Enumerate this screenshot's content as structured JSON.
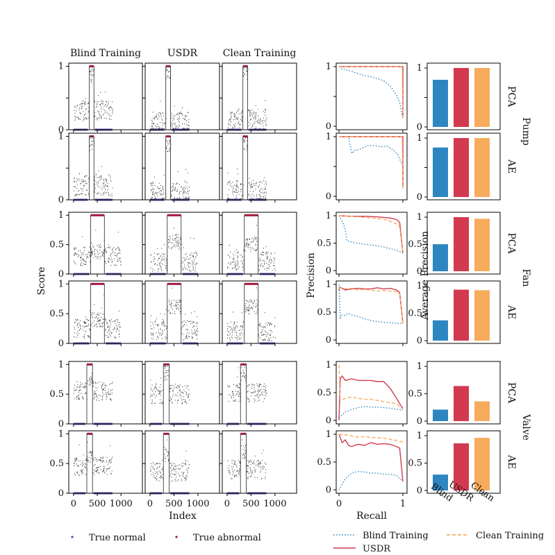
{
  "chart_data": {
    "type": "composite",
    "column_titles": [
      "Blind Training",
      "USDR",
      "Clean Training"
    ],
    "method_titles": [
      "Blind Training",
      "USDR",
      "Clean Training"
    ],
    "machines": [
      "Pump",
      "Fan",
      "Valve"
    ],
    "models": [
      "PCA",
      "AE"
    ],
    "score_panels": {
      "ylabel": "Score",
      "xlabel": "Index",
      "xlim": [
        -100,
        1450
      ],
      "ylim": [
        0,
        1.05
      ],
      "xticks": [
        "0",
        "500",
        "1000"
      ],
      "yticks_full": [
        "0",
        "0.5",
        "1"
      ],
      "yticks_pump": [
        "0",
        "1"
      ],
      "abnormal_intervals": {
        "Pump": [
          330,
          430
        ],
        "Fan": [
          360,
          650
        ],
        "Valve": [
          280,
          400
        ]
      },
      "normal_intervals": {
        "Pump": [
          [
            0,
            300
          ],
          [
            450,
            820
          ]
        ],
        "Fan": [
          [
            0,
            330
          ],
          [
            680,
            1000
          ]
        ],
        "Valve": [
          [
            0,
            250
          ],
          [
            420,
            820
          ]
        ]
      }
    },
    "pr_curves": {
      "xlabel": "Recall",
      "ylabel": "Precision",
      "xticks": [
        "0",
        "1"
      ],
      "yticks_full": [
        "0",
        "0.5",
        "1"
      ],
      "yticks_pump": [
        "0",
        "1"
      ],
      "panels": [
        {
          "machine": "Pump",
          "model": "PCA",
          "series": [
            {
              "name": "Blind Training",
              "x": [
                0,
                0.05,
                0.1,
                0.2,
                0.3,
                0.4,
                0.5,
                0.6,
                0.7,
                0.8,
                0.9,
                0.95,
                1.0
              ],
              "y": [
                1.0,
                0.96,
                0.95,
                0.92,
                0.88,
                0.85,
                0.83,
                0.8,
                0.76,
                0.68,
                0.52,
                0.4,
                0.12
              ]
            },
            {
              "name": "USDR",
              "x": [
                0,
                0.99,
                1.0,
                1.0
              ],
              "y": [
                1.0,
                1.0,
                1.0,
                0.15
              ]
            },
            {
              "name": "Clean Training",
              "x": [
                0,
                0.98,
                0.99,
                1.0
              ],
              "y": [
                1.0,
                1.0,
                0.98,
                0.12
              ]
            }
          ]
        },
        {
          "machine": "Pump",
          "model": "AE",
          "series": [
            {
              "name": "Blind Training",
              "x": [
                0,
                0.15,
                0.2,
                0.25,
                0.35,
                0.45,
                0.55,
                0.65,
                0.75,
                0.85,
                0.92,
                1.0
              ],
              "y": [
                1.0,
                1.0,
                0.72,
                0.77,
                0.8,
                0.85,
                0.85,
                0.83,
                0.84,
                0.78,
                0.7,
                0.5
              ]
            },
            {
              "name": "USDR",
              "x": [
                0,
                0.99,
                1.0,
                1.0
              ],
              "y": [
                1.0,
                1.0,
                1.0,
                0.15
              ]
            },
            {
              "name": "Clean Training",
              "x": [
                0,
                0.98,
                0.99,
                1.0
              ],
              "y": [
                1.0,
                1.0,
                0.98,
                0.12
              ]
            }
          ]
        },
        {
          "machine": "Fan",
          "model": "PCA",
          "series": [
            {
              "name": "Blind Training",
              "x": [
                0,
                0.05,
                0.1,
                0.12,
                0.2,
                0.3,
                0.4,
                0.5,
                0.6,
                0.7,
                0.8,
                0.9,
                1.0
              ],
              "y": [
                1.0,
                0.9,
                0.75,
                0.55,
                0.52,
                0.5,
                0.48,
                0.47,
                0.45,
                0.43,
                0.4,
                0.37,
                0.32
              ]
            },
            {
              "name": "USDR",
              "x": [
                0,
                0.2,
                0.4,
                0.6,
                0.7,
                0.8,
                0.9,
                0.95,
                1.0
              ],
              "y": [
                1.0,
                0.99,
                0.99,
                0.98,
                0.97,
                0.96,
                0.93,
                0.88,
                0.32
              ]
            },
            {
              "name": "Clean Training",
              "x": [
                0,
                0.2,
                0.4,
                0.6,
                0.7,
                0.8,
                0.9,
                0.95,
                1.0
              ],
              "y": [
                1.0,
                0.99,
                0.97,
                0.95,
                0.93,
                0.9,
                0.85,
                0.8,
                0.32
              ]
            }
          ]
        },
        {
          "machine": "Fan",
          "model": "AE",
          "series": [
            {
              "name": "Blind Training",
              "x": [
                0,
                0.02,
                0.05,
                0.1,
                0.15,
                0.2,
                0.3,
                0.4,
                0.5,
                0.6,
                0.7,
                0.8,
                0.9,
                1.0
              ],
              "y": [
                1.0,
                0.4,
                0.45,
                0.44,
                0.48,
                0.45,
                0.42,
                0.38,
                0.35,
                0.33,
                0.32,
                0.31,
                0.3,
                0.3
              ]
            },
            {
              "name": "USDR",
              "x": [
                0,
                0.02,
                0.1,
                0.2,
                0.3,
                0.4,
                0.5,
                0.6,
                0.7,
                0.8,
                0.9,
                0.95,
                1.0
              ],
              "y": [
                0.9,
                0.95,
                0.9,
                0.92,
                0.93,
                0.92,
                0.92,
                0.94,
                0.92,
                0.93,
                0.9,
                0.85,
                0.3
              ]
            },
            {
              "name": "Clean Training",
              "x": [
                0,
                0.02,
                0.1,
                0.2,
                0.3,
                0.4,
                0.5,
                0.6,
                0.7,
                0.8,
                0.9,
                0.95,
                1.0
              ],
              "y": [
                0.92,
                0.94,
                0.92,
                0.93,
                0.9,
                0.91,
                0.9,
                0.88,
                0.89,
                0.88,
                0.87,
                0.83,
                0.3
              ]
            }
          ]
        },
        {
          "machine": "Valve",
          "model": "PCA",
          "series": [
            {
              "name": "Blind Training",
              "x": [
                0,
                0.1,
                0.2,
                0.3,
                0.4,
                0.5,
                0.6,
                0.7,
                0.8,
                0.9,
                1.0
              ],
              "y": [
                0.05,
                0.15,
                0.2,
                0.23,
                0.25,
                0.24,
                0.24,
                0.23,
                0.22,
                0.2,
                0.18
              ]
            },
            {
              "name": "USDR",
              "x": [
                0,
                0.02,
                0.05,
                0.1,
                0.2,
                0.3,
                0.4,
                0.5,
                0.6,
                0.7,
                0.8,
                0.9,
                0.95,
                1.0
              ],
              "y": [
                0.0,
                0.75,
                0.8,
                0.72,
                0.75,
                0.72,
                0.72,
                0.72,
                0.7,
                0.7,
                0.58,
                0.4,
                0.3,
                0.22
              ]
            },
            {
              "name": "Clean Training",
              "x": [
                0,
                0.02,
                0.1,
                0.2,
                0.3,
                0.4,
                0.5,
                0.6,
                0.7,
                0.8,
                0.9,
                1.0
              ],
              "y": [
                1.0,
                0.35,
                0.4,
                0.42,
                0.4,
                0.38,
                0.38,
                0.36,
                0.34,
                0.32,
                0.3,
                0.2
              ]
            }
          ]
        },
        {
          "machine": "Valve",
          "model": "AE",
          "series": [
            {
              "name": "Blind Training",
              "x": [
                0,
                0.05,
                0.1,
                0.2,
                0.3,
                0.4,
                0.5,
                0.6,
                0.7,
                0.8,
                0.9,
                1.0
              ],
              "y": [
                0.0,
                0.1,
                0.2,
                0.3,
                0.33,
                0.32,
                0.3,
                0.3,
                0.28,
                0.28,
                0.26,
                0.15
              ]
            },
            {
              "name": "USDR",
              "x": [
                0,
                0.05,
                0.1,
                0.15,
                0.2,
                0.3,
                0.4,
                0.5,
                0.6,
                0.7,
                0.8,
                0.9,
                0.95,
                1.0
              ],
              "y": [
                1.0,
                0.85,
                0.9,
                0.8,
                0.78,
                0.82,
                0.8,
                0.85,
                0.82,
                0.83,
                0.82,
                0.78,
                0.75,
                0.15
              ]
            },
            {
              "name": "Clean Training",
              "x": [
                0,
                0.1,
                0.2,
                0.3,
                0.4,
                0.5,
                0.6,
                0.7,
                0.8,
                0.9,
                1.0
              ],
              "y": [
                1.0,
                0.99,
                0.97,
                0.95,
                0.96,
                0.94,
                0.94,
                0.93,
                0.91,
                0.89,
                0.86
              ]
            }
          ]
        }
      ]
    },
    "average_precision": {
      "ylabel": "Average Precision",
      "categories": [
        "Blind",
        "USDR",
        "Clean"
      ],
      "yticks_full": [
        "0",
        "0.5",
        "1"
      ],
      "yticks_pump": [
        "0",
        "1"
      ],
      "panels": [
        {
          "machine": "Pump",
          "model": "PCA",
          "values": [
            0.8,
            1.0,
            1.0
          ]
        },
        {
          "machine": "Pump",
          "model": "AE",
          "values": [
            0.84,
            1.0,
            1.0
          ]
        },
        {
          "machine": "Fan",
          "model": "PCA",
          "values": [
            0.5,
            1.0,
            0.97
          ]
        },
        {
          "machine": "Fan",
          "model": "AE",
          "values": [
            0.37,
            0.93,
            0.92
          ]
        },
        {
          "machine": "Valve",
          "model": "PCA",
          "values": [
            0.21,
            0.64,
            0.36
          ]
        },
        {
          "machine": "Valve",
          "model": "AE",
          "values": [
            0.29,
            0.86,
            0.96
          ]
        }
      ]
    },
    "legend": {
      "score": [
        {
          "label": "True normal",
          "color": "#5b4b9e"
        },
        {
          "label": "True abnormal",
          "color": "#a3163c"
        }
      ],
      "pr": [
        {
          "label": "Blind Training",
          "style": "dotted",
          "color": "#2b83ba"
        },
        {
          "label": "Clean Training",
          "style": "dashed",
          "color": "#f6a348"
        },
        {
          "label": "USDR",
          "style": "solid",
          "color": "#d1374b"
        }
      ]
    },
    "colors": {
      "blind": "#2e86c1",
      "usdr": "#d23a50",
      "clean": "#f7ab5c",
      "normal": "#5b4b9e",
      "abnormal": "#a3163c",
      "score_points": "#444444"
    }
  }
}
